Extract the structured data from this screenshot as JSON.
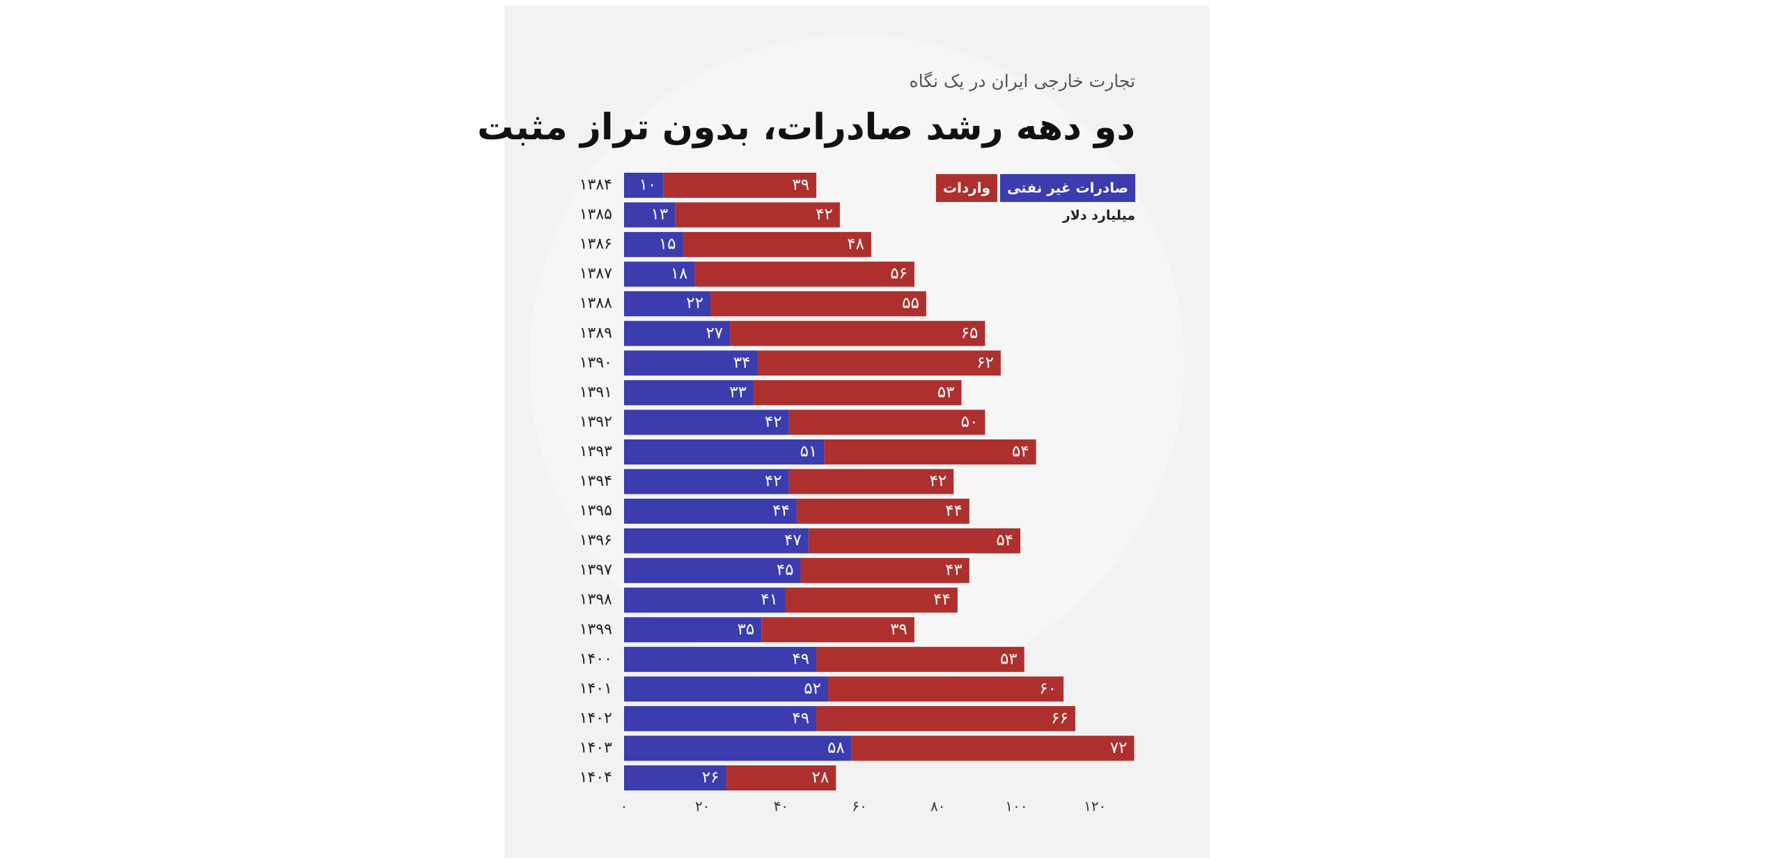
{
  "chart_data": {
    "type": "bar",
    "orientation": "horizontal",
    "stacked": true,
    "subtitle": "تجارت خارجی ایران در یک نگاه",
    "title": "دو دهه رشد صادرات، بدون تراز مثبت",
    "unit": "میلیارد دلار",
    "legend_position": "top-right",
    "categories": [
      "۱۳۸۴",
      "۱۳۸۵",
      "۱۳۸۶",
      "۱۳۸۷",
      "۱۳۸۸",
      "۱۳۸۹",
      "۱۳۹۰",
      "۱۳۹۱",
      "۱۳۹۲",
      "۱۳۹۳",
      "۱۳۹۴",
      "۱۳۹۵",
      "۱۳۹۶",
      "۱۳۹۷",
      "۱۳۹۸",
      "۱۳۹۹",
      "۱۴۰۰",
      "۱۴۰۱",
      "۱۴۰۲",
      "۱۴۰۳",
      "۱۴۰۴"
    ],
    "series": [
      {
        "name": "صادرات غیر نفتی",
        "color": "#3b3cae",
        "values": [
          10,
          13,
          15,
          18,
          22,
          27,
          34,
          33,
          42,
          51,
          42,
          44,
          47,
          45,
          41,
          35,
          49,
          52,
          49,
          58,
          26
        ],
        "value_labels": [
          "۱۰",
          "۱۳",
          "۱۵",
          "۱۸",
          "۲۲",
          "۲۷",
          "۳۴",
          "۳۳",
          "۴۲",
          "۵۱",
          "۴۲",
          "۴۴",
          "۴۷",
          "۴۵",
          "۴۱",
          "۳۵",
          "۴۹",
          "۵۲",
          "۴۹",
          "۵۸",
          "۲۶"
        ]
      },
      {
        "name": "واردات",
        "color": "#ad302e",
        "values": [
          39,
          42,
          48,
          56,
          55,
          65,
          62,
          53,
          50,
          54,
          42,
          44,
          54,
          43,
          44,
          39,
          53,
          60,
          66,
          72,
          28
        ],
        "value_labels": [
          "۳۹",
          "۴۲",
          "۴۸",
          "۵۶",
          "۵۵",
          "۶۵",
          "۶۲",
          "۵۳",
          "۵۰",
          "۵۴",
          "۴۲",
          "۴۴",
          "۵۴",
          "۴۳",
          "۴۴",
          "۳۹",
          "۵۳",
          "۶۰",
          "۶۶",
          "۷۲",
          "۲۸"
        ]
      }
    ],
    "xlim": [
      0,
      130
    ],
    "xticks": [
      {
        "value": 0,
        "label": "۰"
      },
      {
        "value": 20,
        "label": "۲۰"
      },
      {
        "value": 40,
        "label": "۴۰"
      },
      {
        "value": 60,
        "label": "۶۰"
      },
      {
        "value": 80,
        "label": "۸۰"
      },
      {
        "value": 100,
        "label": "۱۰۰"
      },
      {
        "value": 120,
        "label": "۱۲۰"
      }
    ]
  }
}
